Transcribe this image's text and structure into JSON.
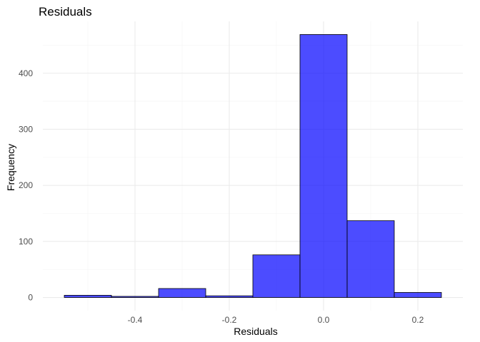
{
  "chart_data": {
    "type": "bar",
    "title": "Residuals",
    "xlabel": "Residuals",
    "ylabel": "Frequency",
    "bin_width": 0.1,
    "bins": [
      {
        "x0": -0.55,
        "x1": -0.45,
        "count": 4
      },
      {
        "x0": -0.45,
        "x1": -0.35,
        "count": 2
      },
      {
        "x0": -0.35,
        "x1": -0.25,
        "count": 16
      },
      {
        "x0": -0.25,
        "x1": -0.15,
        "count": 3
      },
      {
        "x0": -0.15,
        "x1": -0.05,
        "count": 76
      },
      {
        "x0": -0.05,
        "x1": 0.05,
        "count": 469
      },
      {
        "x0": 0.05,
        "x1": 0.15,
        "count": 137
      },
      {
        "x0": 0.15,
        "x1": 0.25,
        "count": 9
      }
    ],
    "xlim": [
      -0.5955,
      0.2955
    ],
    "ylim": [
      -23.45,
      492.45
    ],
    "x_ticks": [
      -0.4,
      -0.2,
      0.0,
      0.2
    ],
    "x_tick_labels": [
      "-0.4",
      "-0.2",
      "0.0",
      "0.2"
    ],
    "x_minor_ticks": [
      -0.5,
      -0.3,
      -0.1,
      0.1
    ],
    "y_ticks": [
      0,
      100,
      200,
      300,
      400
    ],
    "y_tick_labels": [
      "0",
      "100",
      "200",
      "300",
      "400"
    ],
    "y_minor_ticks": [
      50,
      150,
      250,
      350,
      450
    ],
    "grid": true,
    "legend": "none",
    "colors": {
      "bar_fill": "#0000ff",
      "bar_fill_opacity": 0.7,
      "bar_outline": "#000000",
      "grid_major": "#ebebeb",
      "grid_minor": "#f4f4f4"
    }
  }
}
